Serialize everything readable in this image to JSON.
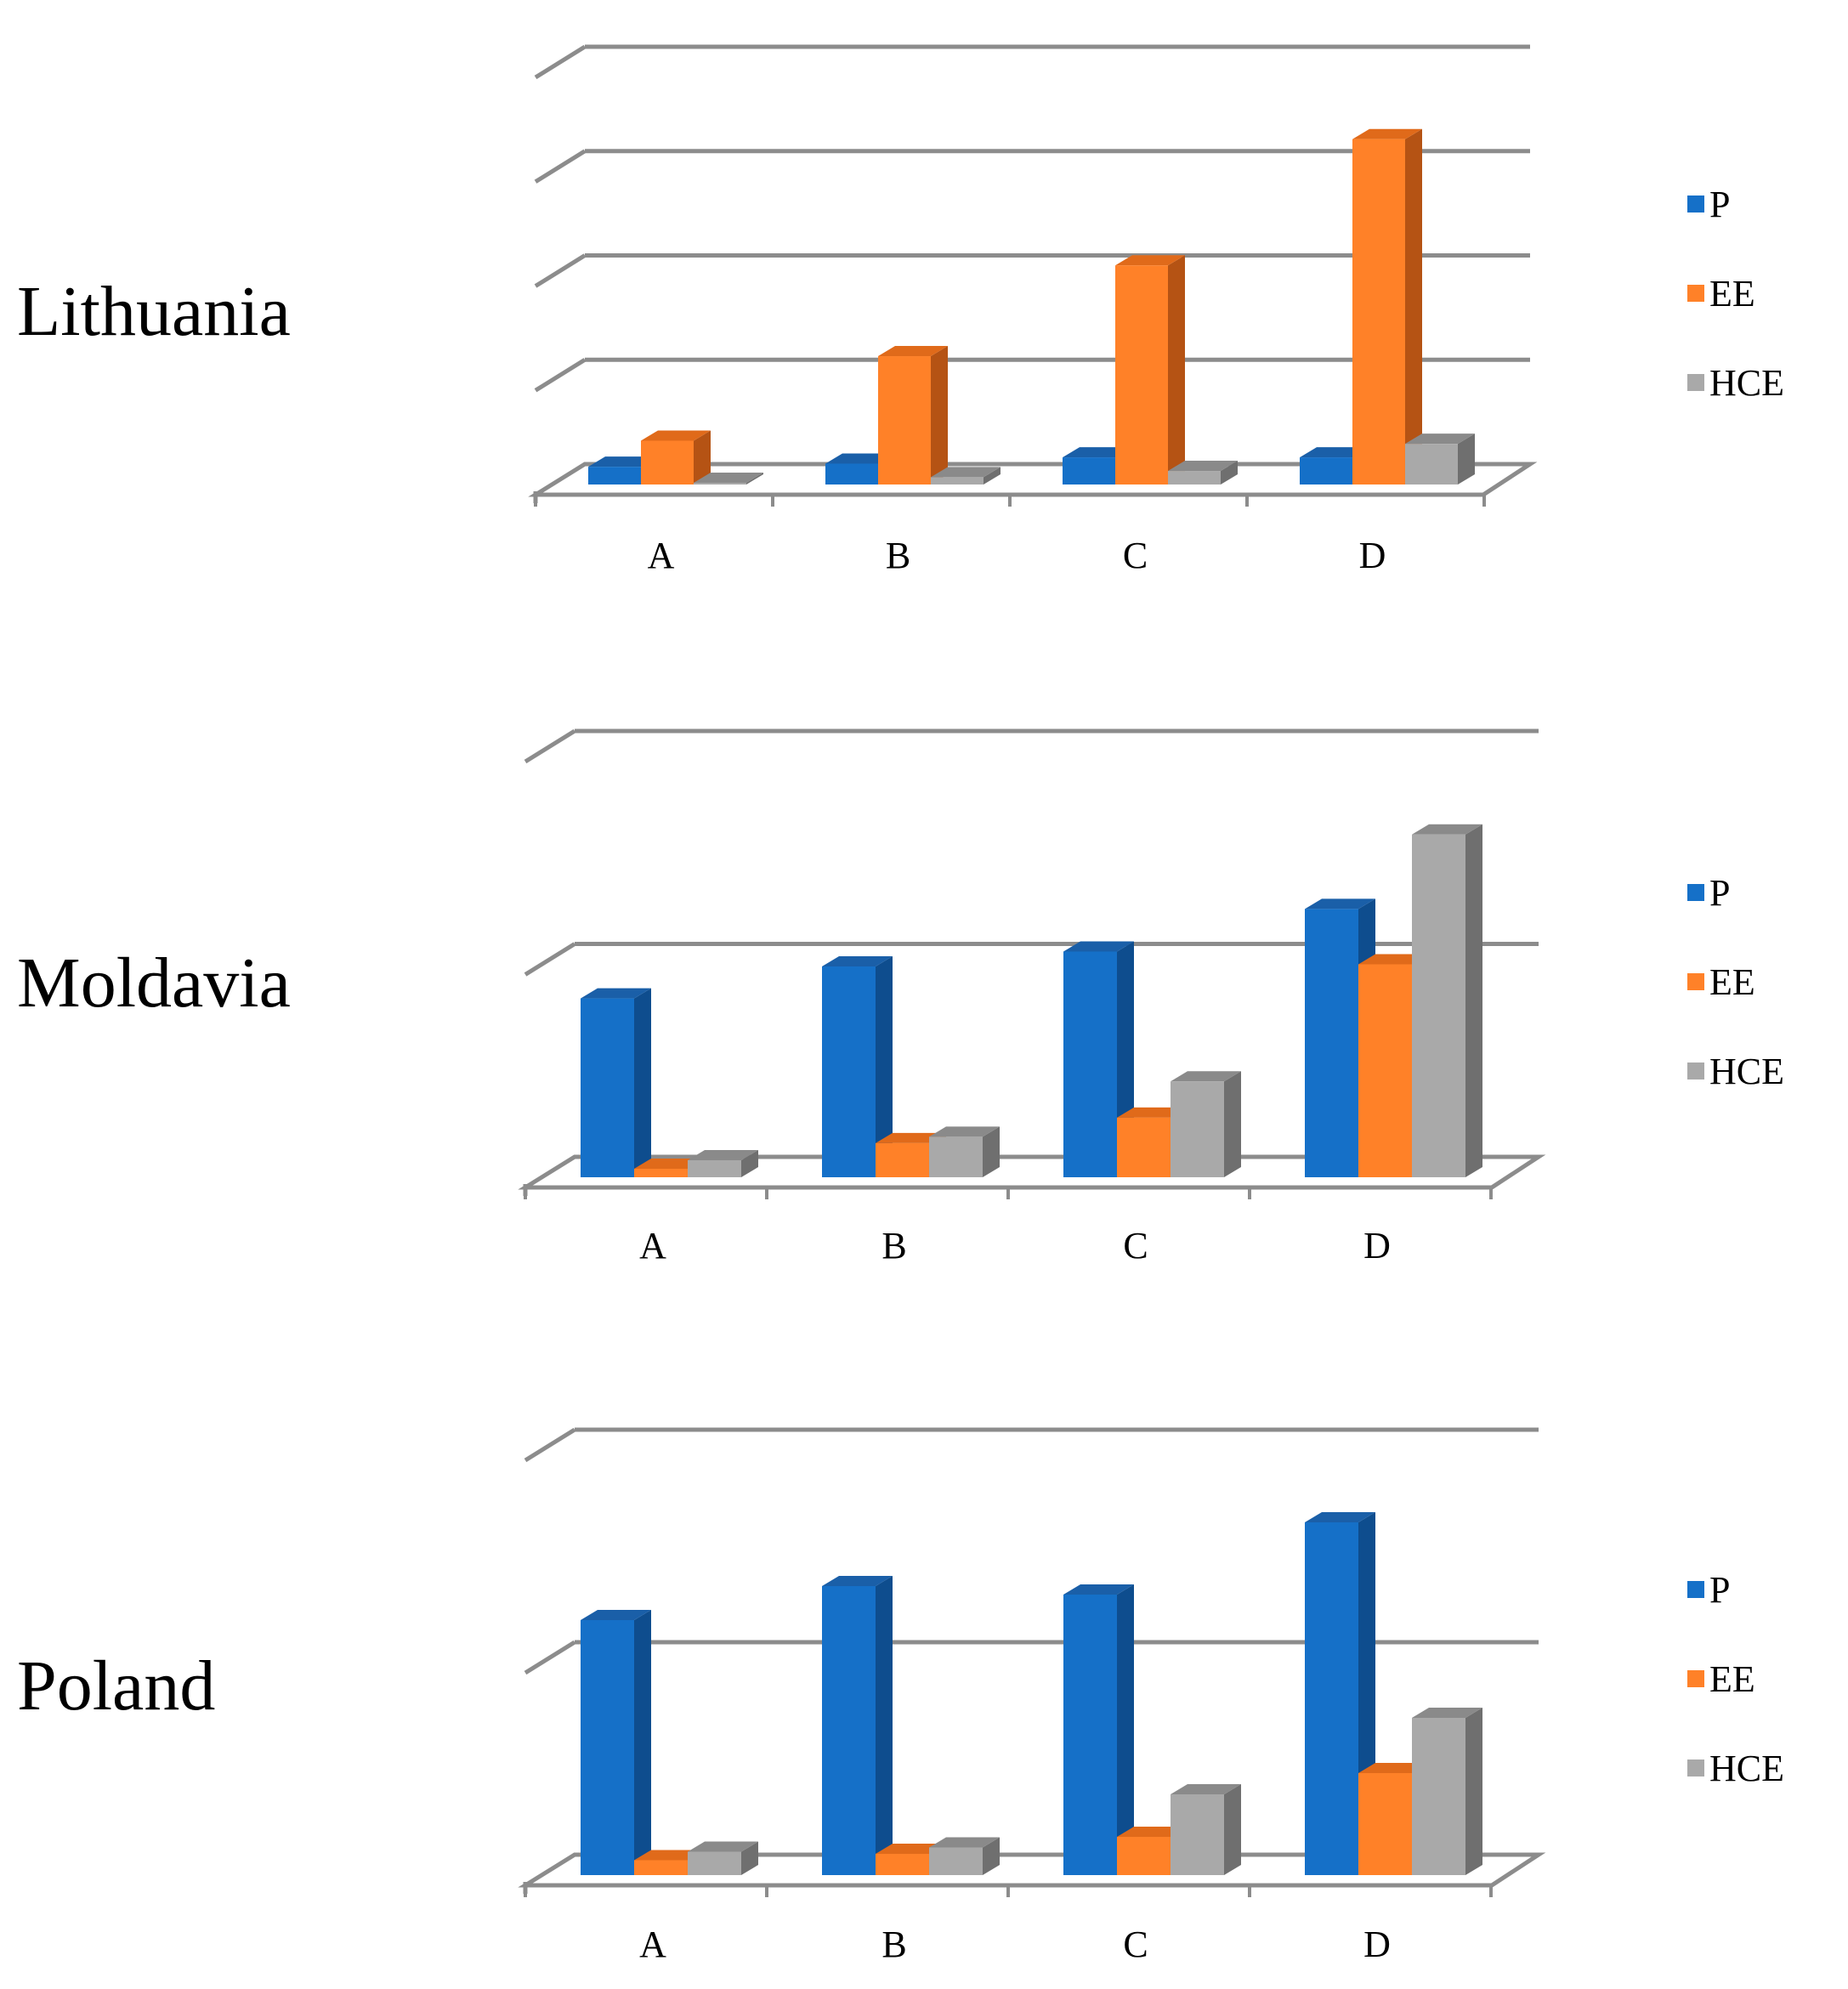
{
  "colors": {
    "P": "#1570c8",
    "P_side": "#0e4d8e",
    "P_top": "#1a5fa8",
    "EE": "#ff8128",
    "EE_side": "#b55314",
    "EE_top": "#e06a1a",
    "HCE": "#a9a9a9",
    "HCE_side": "#6f6f6f",
    "HCE_top": "#8a8a8a",
    "grid": "#8c8c8c"
  },
  "chart_data": [
    {
      "type": "bar",
      "title": "Lithuania",
      "categories": [
        "A",
        "B",
        "C",
        "D"
      ],
      "ylim": [
        0,
        4
      ],
      "gridlines": [
        1,
        2,
        3,
        4
      ],
      "legend": [
        "P",
        "EE",
        "HCE"
      ],
      "legend_position": "right",
      "series": [
        {
          "name": "P",
          "values": [
            0.17,
            0.2,
            0.26,
            0.26
          ]
        },
        {
          "name": "EE",
          "values": [
            0.42,
            1.23,
            2.1,
            3.31
          ]
        },
        {
          "name": "HCE",
          "values": [
            0.01,
            0.07,
            0.13,
            0.39
          ]
        }
      ]
    },
    {
      "type": "bar",
      "title": "Moldavia",
      "categories": [
        "A",
        "B",
        "C",
        "D"
      ],
      "ylim": [
        0,
        2
      ],
      "gridlines": [
        1,
        2
      ],
      "legend": [
        "P",
        "EE",
        "HCE"
      ],
      "legend_position": "right",
      "series": [
        {
          "name": "P",
          "values": [
            0.84,
            0.99,
            1.06,
            1.26
          ]
        },
        {
          "name": "EE",
          "values": [
            0.04,
            0.16,
            0.28,
            1.0
          ]
        },
        {
          "name": "HCE",
          "values": [
            0.08,
            0.19,
            0.45,
            1.61
          ]
        }
      ]
    },
    {
      "type": "bar",
      "title": "Poland",
      "categories": [
        "A",
        "B",
        "C",
        "D"
      ],
      "ylim": [
        0,
        2
      ],
      "gridlines": [
        1,
        2
      ],
      "legend": [
        "P",
        "EE",
        "HCE"
      ],
      "legend_position": "right",
      "series": [
        {
          "name": "P",
          "values": [
            1.2,
            1.36,
            1.32,
            1.66
          ]
        },
        {
          "name": "EE",
          "values": [
            0.07,
            0.1,
            0.18,
            0.48
          ]
        },
        {
          "name": "HCE",
          "values": [
            0.11,
            0.13,
            0.38,
            0.74
          ]
        }
      ]
    }
  ]
}
